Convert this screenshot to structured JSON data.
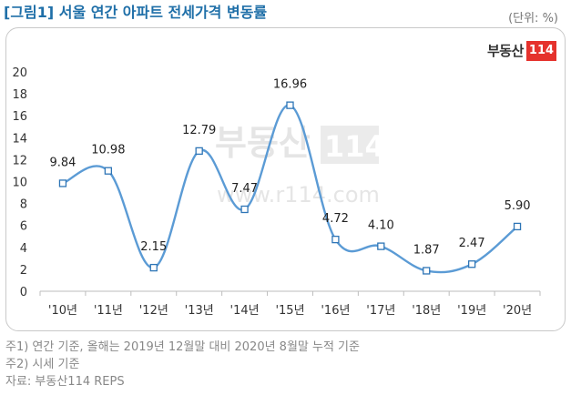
{
  "header": {
    "title": "[그림1] 서울 연간 아파트 전세가격 변동률",
    "unit": "(단위: %)"
  },
  "logo": {
    "text": "부동산",
    "number": "114"
  },
  "watermark": {
    "brand": "부동산",
    "number": "114",
    "url": "www.r114.com"
  },
  "chart_data": {
    "type": "line",
    "title": "",
    "xlabel": "",
    "ylabel": "",
    "categories": [
      "'10년",
      "'11년",
      "'12년",
      "'13년",
      "'14년",
      "'15년",
      "'16년",
      "'17년",
      "'18년",
      "'19년",
      "'20년"
    ],
    "values": [
      9.84,
      10.98,
      2.15,
      12.79,
      7.47,
      16.96,
      4.72,
      4.1,
      1.87,
      2.47,
      5.9
    ],
    "data_labels": [
      "9.84",
      "10.98",
      "2.15",
      "12.79",
      "7.47",
      "16.96",
      "4.72",
      "4.10",
      "1.87",
      "2.47",
      "5.90"
    ],
    "y_ticks": [
      "0",
      "2",
      "4",
      "6",
      "8",
      "10",
      "12",
      "14",
      "16",
      "18",
      "20"
    ],
    "ylim": [
      0,
      20
    ],
    "smooth": true,
    "grid": false,
    "line_color": "#5b9bd5",
    "marker_color": "#2e75b6"
  },
  "notes": [
    "주1) 연간 기준, 올해는 2019년 12월말 대비 2020년 8월말 누적 기준",
    "주2) 시세 기준",
    "자료: 부동산114 REPS"
  ]
}
